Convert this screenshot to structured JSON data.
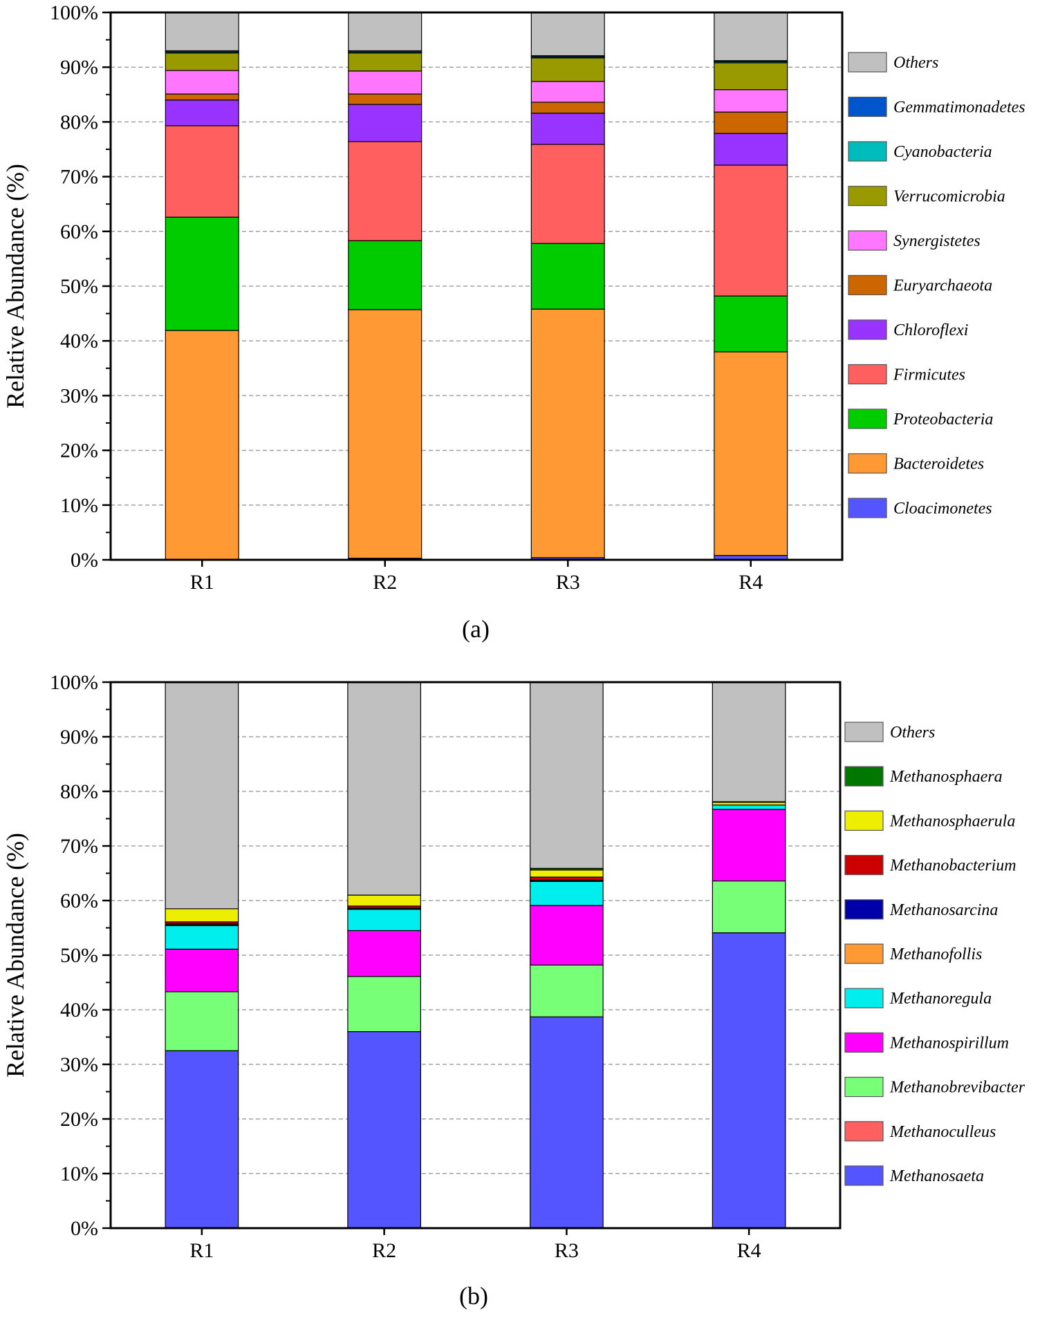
{
  "chart_data": [
    {
      "type": "bar",
      "stacked": true,
      "caption": "(a)",
      "ylabel": "Relative Abundance (%)",
      "categories": [
        "R1",
        "R2",
        "R3",
        "R4"
      ],
      "ylim": [
        0,
        100
      ],
      "yticks": [
        "0%",
        "10%",
        "20%",
        "30%",
        "40%",
        "50%",
        "60%",
        "70%",
        "80%",
        "90%",
        "100%"
      ],
      "grid": true,
      "legend_position": "right",
      "series": [
        {
          "name": "Cloacimonetes",
          "color": "#5555ff",
          "values": [
            0.0,
            0.3,
            0.4,
            0.8
          ]
        },
        {
          "name": "Bacteroidetes",
          "color": "#ff9933",
          "values": [
            41.9,
            45.4,
            45.4,
            37.2
          ]
        },
        {
          "name": "Proteobacteria",
          "color": "#00cc00",
          "values": [
            20.7,
            12.6,
            12.0,
            10.2
          ]
        },
        {
          "name": "Firmicutes",
          "color": "#ff5f5f",
          "values": [
            16.7,
            18.1,
            18.1,
            23.9
          ]
        },
        {
          "name": "Chloroflexi",
          "color": "#9933ff",
          "values": [
            4.7,
            6.8,
            5.7,
            5.8
          ]
        },
        {
          "name": "Euryarchaeota",
          "color": "#cc6600",
          "values": [
            1.1,
            1.9,
            2.0,
            3.9
          ]
        },
        {
          "name": "Synergistetes",
          "color": "#ff77ff",
          "values": [
            4.3,
            4.2,
            3.8,
            4.1
          ]
        },
        {
          "name": "Verrucomicrobia",
          "color": "#999900",
          "values": [
            3.2,
            3.3,
            4.3,
            4.9
          ]
        },
        {
          "name": "Cyanobacteria",
          "color": "#00bbbb",
          "values": [
            0.2,
            0.2,
            0.2,
            0.2
          ]
        },
        {
          "name": "Gemmatimonadetes",
          "color": "#0055cc",
          "values": [
            0.2,
            0.2,
            0.2,
            0.2
          ]
        },
        {
          "name": "Others",
          "color": "#c0c0c0",
          "values": [
            7.0,
            7.0,
            7.9,
            8.8
          ]
        }
      ]
    },
    {
      "type": "bar",
      "stacked": true,
      "caption": "(b)",
      "ylabel": "Relative Abundance (%)",
      "categories": [
        "R1",
        "R2",
        "R3",
        "R4"
      ],
      "ylim": [
        0,
        100
      ],
      "yticks": [
        "0%",
        "10%",
        "20%",
        "30%",
        "40%",
        "50%",
        "60%",
        "70%",
        "80%",
        "90%",
        "100%"
      ],
      "grid": true,
      "legend_position": "right",
      "series": [
        {
          "name": "Methanosaeta",
          "color": "#5555ff",
          "values": [
            32.5,
            36.0,
            38.7,
            54.1
          ]
        },
        {
          "name": "Methanoculleus",
          "color": "#ff5f5f",
          "values": [
            0.0,
            0.0,
            0.0,
            0.0
          ]
        },
        {
          "name": "Methanobrevibacter",
          "color": "#77ff77",
          "values": [
            10.8,
            10.1,
            9.5,
            9.5
          ]
        },
        {
          "name": "Methanospirillum",
          "color": "#ff00ff",
          "values": [
            7.8,
            8.4,
            10.9,
            13.1
          ]
        },
        {
          "name": "Methanoregula",
          "color": "#00eeee",
          "values": [
            4.3,
            3.9,
            4.4,
            0.8
          ]
        },
        {
          "name": "Methanofollis",
          "color": "#ff9933",
          "values": [
            0.2,
            0.1,
            0.1,
            0.0
          ]
        },
        {
          "name": "Methanosarcina",
          "color": "#0000aa",
          "values": [
            0.1,
            0.1,
            0.1,
            0.0
          ]
        },
        {
          "name": "Methanobacterium",
          "color": "#cc0000",
          "values": [
            0.4,
            0.4,
            0.6,
            0.0
          ]
        },
        {
          "name": "Methanosphaerula",
          "color": "#eeee00",
          "values": [
            2.4,
            2.0,
            1.3,
            0.5
          ]
        },
        {
          "name": "Methanosphaera",
          "color": "#007700",
          "values": [
            0.0,
            0.0,
            0.3,
            0.1
          ]
        },
        {
          "name": "Others",
          "color": "#c0c0c0",
          "values": [
            41.5,
            39.0,
            34.1,
            21.9
          ]
        }
      ]
    }
  ]
}
